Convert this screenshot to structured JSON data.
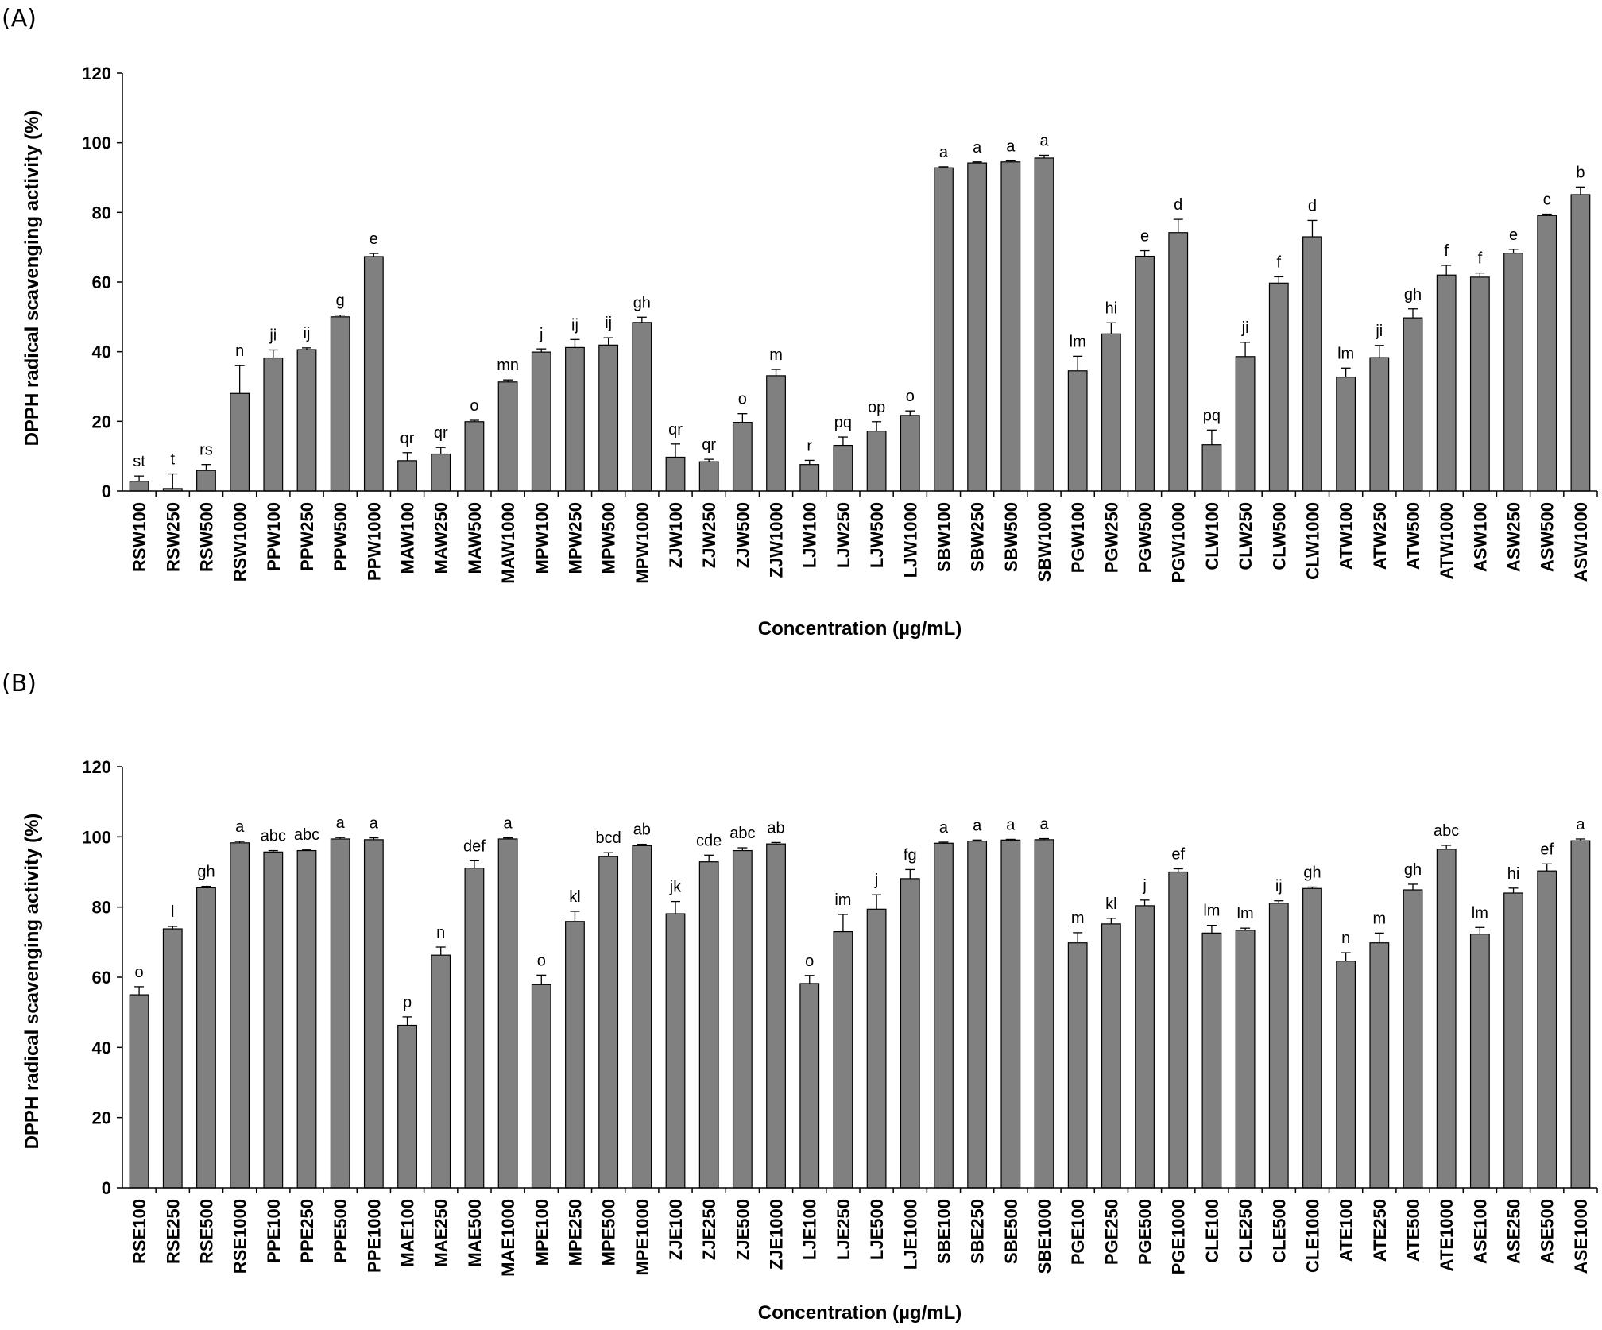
{
  "figure": {
    "panel_a_label": "(A)",
    "panel_b_label": "(B)"
  },
  "chart_data": [
    {
      "type": "bar",
      "panel": "(A)",
      "xlabel": "Concentration (µg/mL)",
      "ylabel": "DPPH radical scavenging activity (%)",
      "ylim": [
        0,
        120
      ],
      "yticks": [
        0,
        20,
        40,
        60,
        80,
        100,
        120
      ],
      "grid": false,
      "bar_color": "#808080",
      "categories": [
        "RSW100",
        "RSW250",
        "RSW500",
        "RSW1000",
        "PPW100",
        "PPW250",
        "PPW500",
        "PPW1000",
        "MAW100",
        "MAW250",
        "MAW500",
        "MAW1000",
        "MPW100",
        "MPW250",
        "MPW500",
        "MPW1000",
        "ZJW100",
        "ZJW250",
        "ZJW500",
        "ZJW1000",
        "LJW100",
        "LJW250",
        "LJW500",
        "LJW1000",
        "SBW100",
        "SBW250",
        "SBW500",
        "SBW1000",
        "PGW100",
        "PGW250",
        "PGW500",
        "PGW1000",
        "CLW100",
        "CLW250",
        "CLW500",
        "CLW1000",
        "ATW100",
        "ATW250",
        "ATW500",
        "ATW1000",
        "ASW100",
        "ASW250",
        "ASW500",
        "ASW1000"
      ],
      "values": [
        2.8,
        0.7,
        5.9,
        28,
        38.2,
        40.6,
        50.0,
        67.3,
        8.7,
        10.6,
        19.9,
        31.3,
        39.9,
        41.2,
        41.9,
        48.4,
        9.7,
        8.4,
        19.7,
        33.1,
        7.6,
        13.1,
        17.2,
        21.7,
        92.8,
        94.2,
        94.5,
        95.6,
        34.5,
        45.1,
        67.4,
        74.2,
        13.3,
        38.6,
        59.7,
        73.0,
        32.7,
        38.3,
        49.7,
        62.0,
        61.4,
        68.3,
        79.1,
        85.1
      ],
      "errors": [
        1.5,
        4.2,
        1.7,
        8.0,
        2.3,
        0.5,
        0.5,
        0.9,
        2.3,
        1.9,
        0.4,
        0.6,
        0.9,
        2.3,
        2.1,
        1.5,
        3.8,
        0.7,
        2.5,
        1.8,
        1.2,
        2.4,
        2.7,
        1.3,
        0.3,
        0.3,
        0.3,
        0.8,
        4.2,
        3.2,
        1.6,
        3.8,
        4.2,
        4.1,
        1.8,
        4.7,
        2.6,
        3.5,
        2.6,
        2.8,
        1.2,
        1.1,
        0.4,
        2.2
      ],
      "significance": [
        "st",
        "t",
        "rs",
        "n",
        "ji",
        "ij",
        "g",
        "e",
        "qr",
        "qr",
        "o",
        "mn",
        "j",
        "ij",
        "ij",
        "gh",
        "qr",
        "qr",
        "o",
        "m",
        "r",
        "pq",
        "op",
        "o",
        "a",
        "a",
        "a",
        "a",
        "lm",
        "hi",
        "e",
        "d",
        "pq",
        "ji",
        "f",
        "d",
        "lm",
        "ji",
        "gh",
        "f",
        "f",
        "e",
        "c",
        "b"
      ]
    },
    {
      "type": "bar",
      "panel": "(B)",
      "xlabel": "Concentration (µg/mL)",
      "ylabel": "DPPH radical scavenging activity (%)",
      "ylim": [
        0,
        120
      ],
      "yticks": [
        0,
        20,
        40,
        60,
        80,
        100,
        120
      ],
      "grid": false,
      "bar_color": "#808080",
      "categories": [
        "RSE100",
        "RSE250",
        "RSE500",
        "RSE1000",
        "PPE100",
        "PPE250",
        "PPE500",
        "PPE1000",
        "MAE100",
        "MAE250",
        "MAE500",
        "MAE1000",
        "MPE100",
        "MPE250",
        "MPE500",
        "MPE1000",
        "ZJE100",
        "ZJE250",
        "ZJE500",
        "ZJE1000",
        "LJE100",
        "LJE250",
        "LJE500",
        "LJE1000",
        "SBE100",
        "SBE250",
        "SBE500",
        "SBE1000",
        "PGE100",
        "PGE250",
        "PGE500",
        "PGE1000",
        "CLE100",
        "CLE250",
        "CLE500",
        "CLE1000",
        "ATE100",
        "ATE250",
        "ATE500",
        "ATE1000",
        "ASE100",
        "ASE250",
        "ASE500",
        "ASE1000"
      ],
      "values": [
        55.0,
        73.8,
        85.5,
        98.3,
        95.7,
        96.1,
        99.4,
        99.2,
        46.3,
        66.3,
        91.1,
        99.4,
        57.9,
        75.9,
        94.4,
        97.5,
        78.1,
        92.9,
        96.1,
        98.0,
        58.2,
        73.0,
        79.4,
        88.1,
        98.2,
        98.8,
        99.1,
        99.2,
        69.8,
        75.2,
        80.4,
        90.0,
        72.6,
        73.4,
        81.1,
        85.3,
        64.6,
        69.8,
        84.9,
        96.5,
        72.3,
        84.0,
        90.3,
        98.9
      ],
      "errors": [
        2.3,
        0.7,
        0.4,
        0.4,
        0.4,
        0.3,
        0.4,
        0.5,
        2.4,
        2.3,
        2.1,
        0.3,
        2.7,
        2.9,
        1.1,
        0.4,
        3.5,
        1.9,
        0.8,
        0.4,
        2.3,
        4.9,
        4.1,
        2.6,
        0.3,
        0.3,
        0.2,
        0.3,
        2.9,
        1.6,
        1.6,
        0.9,
        2.2,
        0.6,
        0.7,
        0.4,
        2.4,
        2.8,
        1.6,
        1.1,
        1.9,
        1.4,
        2.0,
        0.5
      ],
      "significance": [
        "o",
        "l",
        "gh",
        "a",
        "abc",
        "abc",
        "a",
        "a",
        "p",
        "n",
        "def",
        "a",
        "o",
        "kl",
        "bcd",
        "ab",
        "jk",
        "cde",
        "abc",
        "ab",
        "o",
        "im",
        "j",
        "fg",
        "a",
        "a",
        "a",
        "a",
        "m",
        "kl",
        "j",
        "ef",
        "lm",
        "lm",
        "ij",
        "gh",
        "n",
        "m",
        "gh",
        "abc",
        "lm",
        "hi",
        "ef",
        "a"
      ]
    }
  ]
}
